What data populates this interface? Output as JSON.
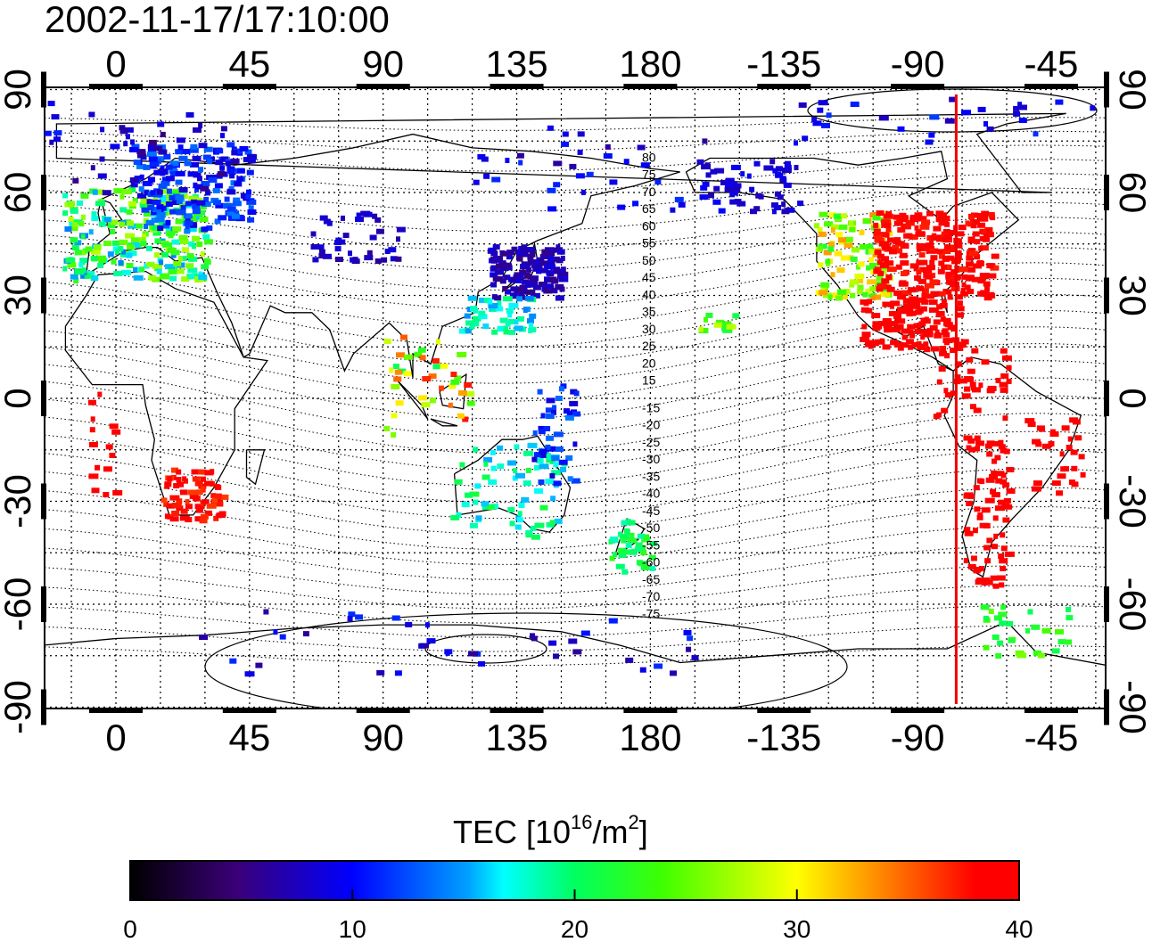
{
  "title": "2002-11-17/17:10:00",
  "map": {
    "top_lon_labels": [
      "0",
      "45",
      "90",
      "135",
      "180",
      "-135",
      "-90",
      "-45"
    ],
    "bottom_lon_labels": [
      "0",
      "45",
      "90",
      "135",
      "180",
      "-135",
      "-90",
      "-45"
    ],
    "left_lat_labels": [
      "90",
      "60",
      "30",
      "0",
      "-30",
      "-60",
      "-90"
    ],
    "right_lat_labels": [
      "90",
      "60",
      "30",
      "0",
      "-30",
      "-60",
      "-90"
    ],
    "grid": "dotted",
    "terminator_longitude": -77,
    "contour_labels_north": [
      "80",
      "75",
      "70",
      "65",
      "60",
      "55",
      "50",
      "45",
      "40",
      "35",
      "30",
      "25",
      "20",
      "15"
    ],
    "contour_labels_south": [
      "-15",
      "-20",
      "-25",
      "-30",
      "-35",
      "-40",
      "-45",
      "-50",
      "-55",
      "-60",
      "-65",
      "-70",
      "-75"
    ]
  },
  "colorbar": {
    "title_prefix": "TEC  [10",
    "title_sup1": "16",
    "title_mid": "/m",
    "title_sup2": "2",
    "title_suffix": "]",
    "tick_labels": [
      "0",
      "10",
      "20",
      "30",
      "40"
    ],
    "min": 0,
    "max": 40
  },
  "colors": {
    "terminator": "#ee0000",
    "coast": "#000000",
    "grid": "#000000"
  }
}
